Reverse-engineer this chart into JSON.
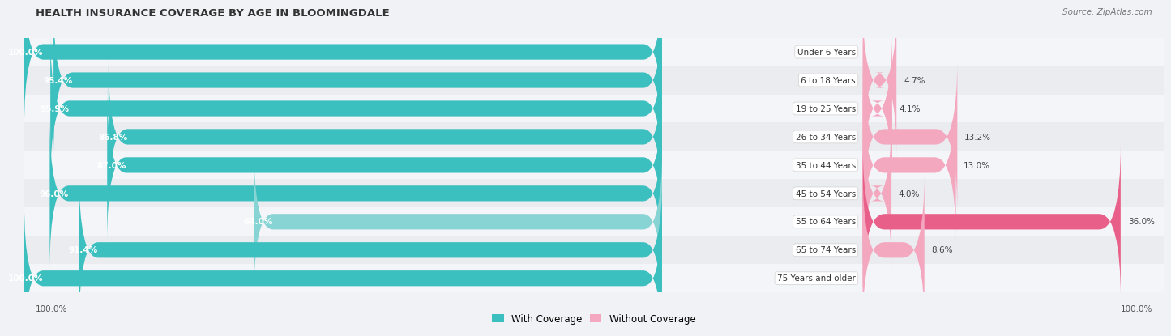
{
  "title": "HEALTH INSURANCE COVERAGE BY AGE IN BLOOMINGDALE",
  "source": "Source: ZipAtlas.com",
  "categories": [
    "Under 6 Years",
    "6 to 18 Years",
    "19 to 25 Years",
    "26 to 34 Years",
    "35 to 44 Years",
    "45 to 54 Years",
    "55 to 64 Years",
    "65 to 74 Years",
    "75 Years and older"
  ],
  "with_coverage": [
    100.0,
    95.4,
    95.9,
    86.8,
    87.0,
    96.0,
    64.0,
    91.4,
    100.0
  ],
  "without_coverage": [
    0.0,
    4.7,
    4.1,
    13.2,
    13.0,
    4.0,
    36.0,
    8.6,
    0.0
  ],
  "color_with": "#3bbfbf",
  "color_with_light": "#88d4d4",
  "color_without_dark": "#e8608a",
  "color_without_light": "#f4a8c0",
  "bg_color": "#f0f2f5",
  "row_bg_even": "#f4f5f8",
  "row_bg_odd": "#eaecf0",
  "legend_with": "With Coverage",
  "legend_without": "Without Coverage",
  "label_55_64_teal": "#88d4d4",
  "label_55_64_pink": "#e8608a",
  "bottom_left_label": "100.0%",
  "bottom_right_label": "100.0%"
}
